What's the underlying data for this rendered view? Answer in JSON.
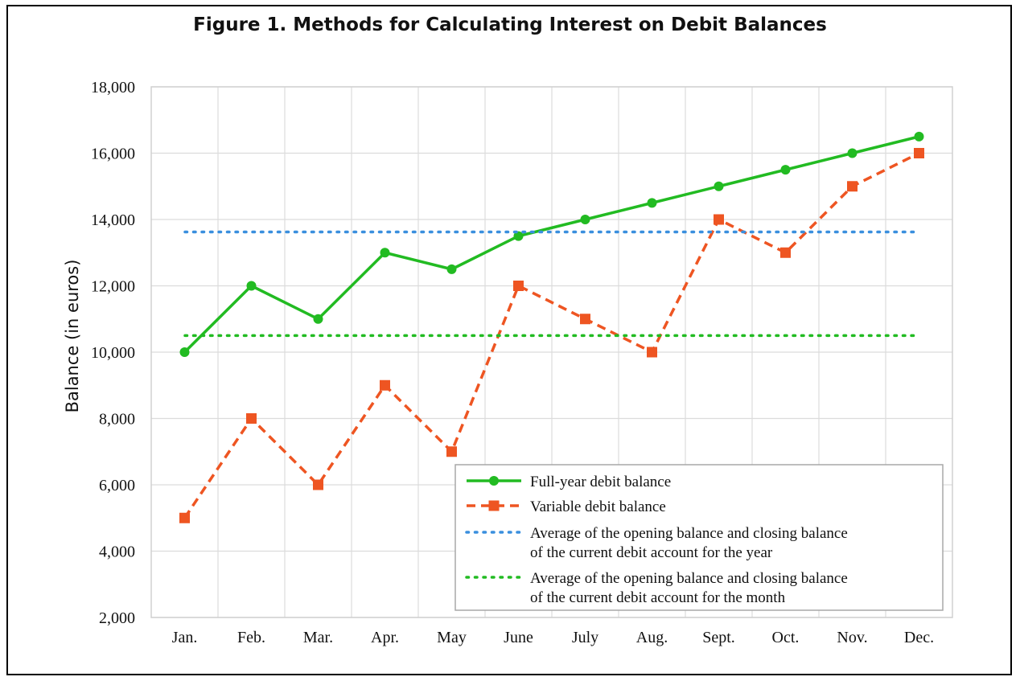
{
  "chart_data": {
    "type": "line",
    "title": "Figure 1. Methods for Calculating Interest on Debit Balances",
    "xlabel": "",
    "ylabel": "Balance (in euros)",
    "categories": [
      "Jan.",
      "Feb.",
      "Mar.",
      "Apr.",
      "May",
      "June",
      "July",
      "Aug.",
      "Sept.",
      "Oct.",
      "Nov.",
      "Dec."
    ],
    "ylim": [
      2000,
      18000
    ],
    "yticks": [
      2000,
      4000,
      6000,
      8000,
      10000,
      12000,
      14000,
      16000,
      18000
    ],
    "ytick_labels": [
      "2,000",
      "4,000",
      "6,000",
      "8,000",
      "10,000",
      "12,000",
      "14,000",
      "16,000",
      "18,000"
    ],
    "grid": true,
    "legend_position": "bottom-right",
    "series": [
      {
        "name": "Full-year debit balance",
        "style": "solid",
        "marker": "circle",
        "color": "#22bb22",
        "values": [
          10000,
          12000,
          11000,
          13000,
          12500,
          13500,
          14000,
          14500,
          15000,
          15500,
          16000,
          16500
        ]
      },
      {
        "name": "Variable debit balance",
        "style": "dashed",
        "marker": "square",
        "color": "#ee5522",
        "values": [
          5000,
          8000,
          6000,
          9000,
          7000,
          12000,
          11000,
          10000,
          14000,
          13000,
          15000,
          16000
        ]
      },
      {
        "name": "Average of the opening balance and closing balance of the current debit account for the year",
        "name_lines": [
          "Average of the opening balance and closing balance",
          "of the current debit account for the year"
        ],
        "style": "dotted",
        "marker": "none",
        "color": "#3a8fde",
        "values": [
          13625,
          13625,
          13625,
          13625,
          13625,
          13625,
          13625,
          13625,
          13625,
          13625,
          13625,
          13625
        ]
      },
      {
        "name": "Average of the opening balance and closing balance of the current debit account for the month",
        "name_lines": [
          "Average of the opening balance and closing balance",
          "of the current debit account for the month"
        ],
        "style": "dotted",
        "marker": "none",
        "color": "#22bb22",
        "values": [
          10500,
          10500,
          10500,
          10500,
          10500,
          10500,
          10500,
          10500,
          10500,
          10500,
          10500,
          10500
        ]
      }
    ]
  }
}
